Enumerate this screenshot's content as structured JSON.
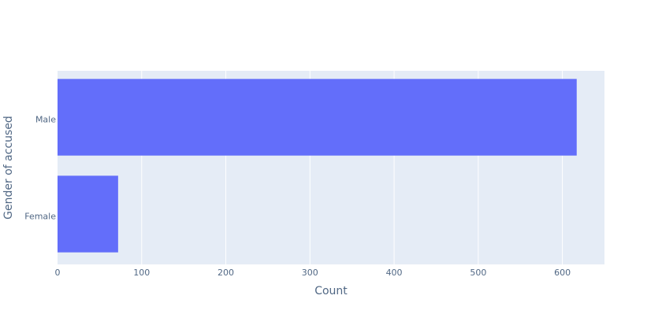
{
  "chart_data": {
    "type": "bar",
    "orientation": "horizontal",
    "title": "",
    "xlabel": "Count",
    "ylabel": "Gender of accused",
    "categories": [
      "Male",
      "Female"
    ],
    "values": [
      617,
      72
    ],
    "xlim": [
      0,
      650
    ],
    "xticks": [
      0,
      100,
      200,
      300,
      400,
      500,
      600
    ],
    "grid": true,
    "colors": {
      "bar": "#636efa",
      "plot_bg": "#e5ecf6",
      "grid": "#ffffff",
      "text": "#506784"
    }
  }
}
